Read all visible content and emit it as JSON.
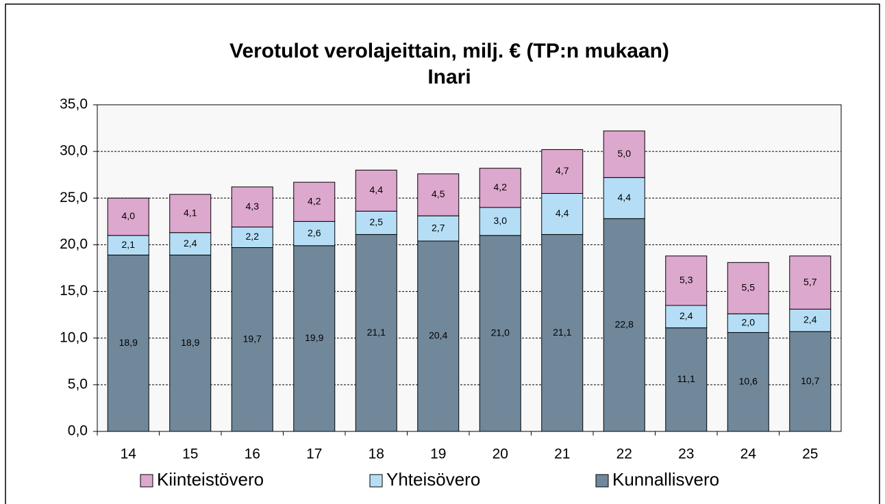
{
  "chart_data": {
    "type": "stacked_bar",
    "title": "Verotulot verolajeittain, milj. €  (TP:n mukaan)",
    "subtitle": "Inari",
    "categories": [
      "14",
      "15",
      "16",
      "17",
      "18",
      "19",
      "20",
      "21",
      "22",
      "23",
      "24",
      "25"
    ],
    "series": [
      {
        "name": "Kunnallisvero",
        "color": "#71889b",
        "values": [
          18.9,
          18.9,
          19.7,
          19.9,
          21.1,
          20.4,
          21.0,
          21.1,
          22.8,
          11.1,
          10.6,
          10.7
        ],
        "value_labels": [
          "18,9",
          "18,9",
          "19,7",
          "19,9",
          "21,1",
          "20,4",
          "21,0",
          "21,1",
          "22,8",
          "11,1",
          "10,6",
          "10,7"
        ]
      },
      {
        "name": "Yhteisövero",
        "color": "#b5def6",
        "values": [
          2.1,
          2.4,
          2.2,
          2.6,
          2.5,
          2.7,
          3.0,
          4.4,
          4.4,
          2.4,
          2.0,
          2.4
        ],
        "value_labels": [
          "2,1",
          "2,4",
          "2,2",
          "2,6",
          "2,5",
          "2,7",
          "3,0",
          "4,4",
          "4,4",
          "2,4",
          "2,0",
          "2,4"
        ]
      },
      {
        "name": "Kiinteistövero",
        "color": "#dda8cd",
        "values": [
          4.0,
          4.1,
          4.3,
          4.2,
          4.4,
          4.5,
          4.2,
          4.7,
          5.0,
          5.3,
          5.5,
          5.7
        ],
        "value_labels": [
          "4,0",
          "4,1",
          "4,3",
          "4,2",
          "4,4",
          "4,5",
          "4,2",
          "4,7",
          "5,0",
          "5,3",
          "5,5",
          "5,7"
        ]
      }
    ],
    "ylim": [
      0,
      35
    ],
    "yticks": [
      {
        "value": 0,
        "label": "0,0"
      },
      {
        "value": 5,
        "label": "5,0"
      },
      {
        "value": 10,
        "label": "10,0"
      },
      {
        "value": 15,
        "label": "15,0"
      },
      {
        "value": 20,
        "label": "20,0"
      },
      {
        "value": 25,
        "label": "25,0"
      },
      {
        "value": 30,
        "label": "30,0"
      },
      {
        "value": 35,
        "label": "35,0"
      }
    ],
    "grid": true,
    "legend": "bottom"
  }
}
